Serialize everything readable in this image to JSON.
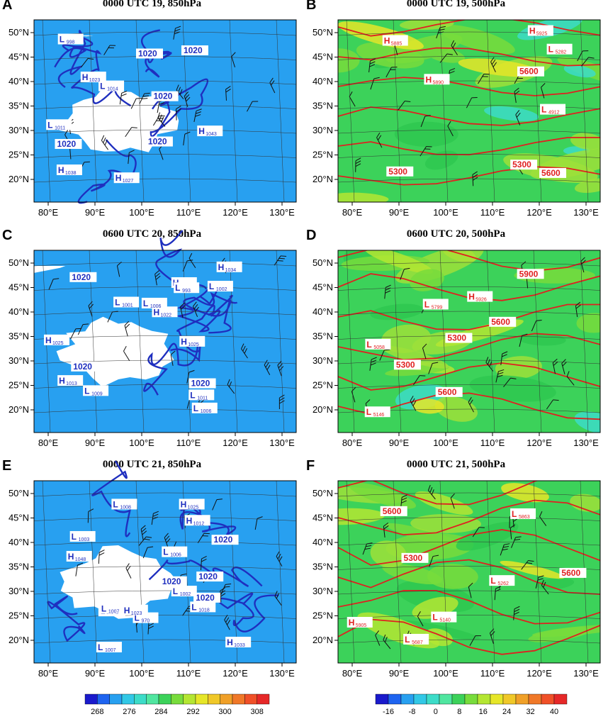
{
  "panels": [
    {
      "letter": "A",
      "title": "0000 UTC 19, 850hPa",
      "type": "850",
      "contour_labels": [
        "1020",
        "1020",
        "1020",
        "1020",
        "1020"
      ],
      "systems": [
        {
          "kind": "H",
          "value": "1027"
        },
        {
          "kind": "H",
          "value": "1043"
        },
        {
          "kind": "L",
          "value": "1014"
        },
        {
          "kind": "H",
          "value": "1038"
        },
        {
          "kind": "L",
          "value": "998"
        },
        {
          "kind": "H",
          "value": "1023"
        },
        {
          "kind": "L",
          "value": "1011"
        }
      ]
    },
    {
      "letter": "B",
      "title": "0000 UTC 19,  500hPa",
      "type": "500",
      "contour_labels": [
        "5300",
        "5300",
        "5600",
        "5600"
      ],
      "systems": [
        {
          "kind": "L",
          "value": "4912"
        },
        {
          "kind": "L",
          "value": "5282"
        },
        {
          "kind": "H",
          "value": "5885"
        },
        {
          "kind": "H",
          "value": "5890"
        },
        {
          "kind": "H",
          "value": "5925"
        }
      ]
    },
    {
      "letter": "C",
      "title": "0600 UTC 20, 850hPa",
      "type": "850",
      "contour_labels": [
        "1020",
        "1020",
        "1020"
      ],
      "systems": [
        {
          "kind": "L",
          "value": "1002"
        },
        {
          "kind": "L",
          "value": "1001"
        },
        {
          "kind": "H",
          "value": "1022"
        },
        {
          "kind": "H",
          "value": "1025"
        },
        {
          "kind": "L",
          "value": "1006"
        },
        {
          "kind": "H",
          "value": "1024"
        },
        {
          "kind": "L",
          "value": "993"
        },
        {
          "kind": "H",
          "value": "1034"
        },
        {
          "kind": "L",
          "value": "1011"
        },
        {
          "kind": "H",
          "value": "1025"
        },
        {
          "kind": "L",
          "value": "1006"
        },
        {
          "kind": "H",
          "value": "1013"
        },
        {
          "kind": "L",
          "value": "1009"
        }
      ]
    },
    {
      "letter": "D",
      "title": "0600 UTC 20,  500hPa",
      "type": "500",
      "contour_labels": [
        "5300",
        "5300",
        "5600",
        "5600",
        "5900"
      ],
      "systems": [
        {
          "kind": "L",
          "value": "5058"
        },
        {
          "kind": "L",
          "value": "5146"
        },
        {
          "kind": "H",
          "value": "5926"
        },
        {
          "kind": "L",
          "value": "5799"
        }
      ]
    },
    {
      "letter": "E",
      "title": "0000 UTC 21, 850hPa",
      "type": "850",
      "contour_labels": [
        "1020",
        "1020",
        "1020",
        "1020",
        "1008"
      ],
      "systems": [
        {
          "kind": "L",
          "value": "1018"
        },
        {
          "kind": "L",
          "value": "1006"
        },
        {
          "kind": "H",
          "value": "1012"
        },
        {
          "kind": "H",
          "value": "1048"
        },
        {
          "kind": "L",
          "value": "1003"
        },
        {
          "kind": "L",
          "value": "970"
        },
        {
          "kind": "L",
          "value": "1008"
        },
        {
          "kind": "L",
          "value": "1002"
        },
        {
          "kind": "H",
          "value": "1033"
        },
        {
          "kind": "H",
          "value": "1025"
        },
        {
          "kind": "L",
          "value": "1007"
        },
        {
          "kind": "L",
          "value": "1007"
        },
        {
          "kind": "H",
          "value": "1023"
        }
      ]
    },
    {
      "letter": "F",
      "title": "0000 UTC 21,  500hPa",
      "type": "500",
      "contour_labels": [
        "5300",
        "5600",
        "5600"
      ],
      "systems": [
        {
          "kind": "L",
          "value": "5140"
        },
        {
          "kind": "L",
          "value": "5262"
        },
        {
          "kind": "L",
          "value": "5687"
        },
        {
          "kind": "H",
          "value": "5905"
        },
        {
          "kind": "L",
          "value": "5863"
        }
      ]
    }
  ],
  "lat_labels": [
    "50°N",
    "45°N",
    "40°N",
    "35°N",
    "30°N",
    "25°N",
    "20°N"
  ],
  "lon_labels": [
    "80°E",
    "90°E",
    "100°E",
    "110°E",
    "120°E",
    "130°E"
  ],
  "colorbar_left": {
    "ticks": [
      "268",
      "276",
      "284",
      "292",
      "300",
      "308"
    ],
    "colors": [
      "#1a1acc",
      "#1e64f0",
      "#28a0f0",
      "#32c8e6",
      "#3cdcc8",
      "#50e6a0",
      "#3cd25a",
      "#78dc3c",
      "#b4e632",
      "#e6e628",
      "#f0c828",
      "#f0a028",
      "#f07828",
      "#f05028",
      "#e62828"
    ]
  },
  "colorbar_right": {
    "ticks": [
      "-16",
      "-8",
      "0",
      "8",
      "16",
      "24",
      "32",
      "40"
    ],
    "colors": [
      "#1a1acc",
      "#1e64f0",
      "#28a0f0",
      "#32c8e6",
      "#3cdcc8",
      "#50e6a0",
      "#3cd25a",
      "#78dc3c",
      "#b4e632",
      "#e6e628",
      "#f0c828",
      "#f0a028",
      "#f07828",
      "#f05028",
      "#e62828"
    ]
  }
}
